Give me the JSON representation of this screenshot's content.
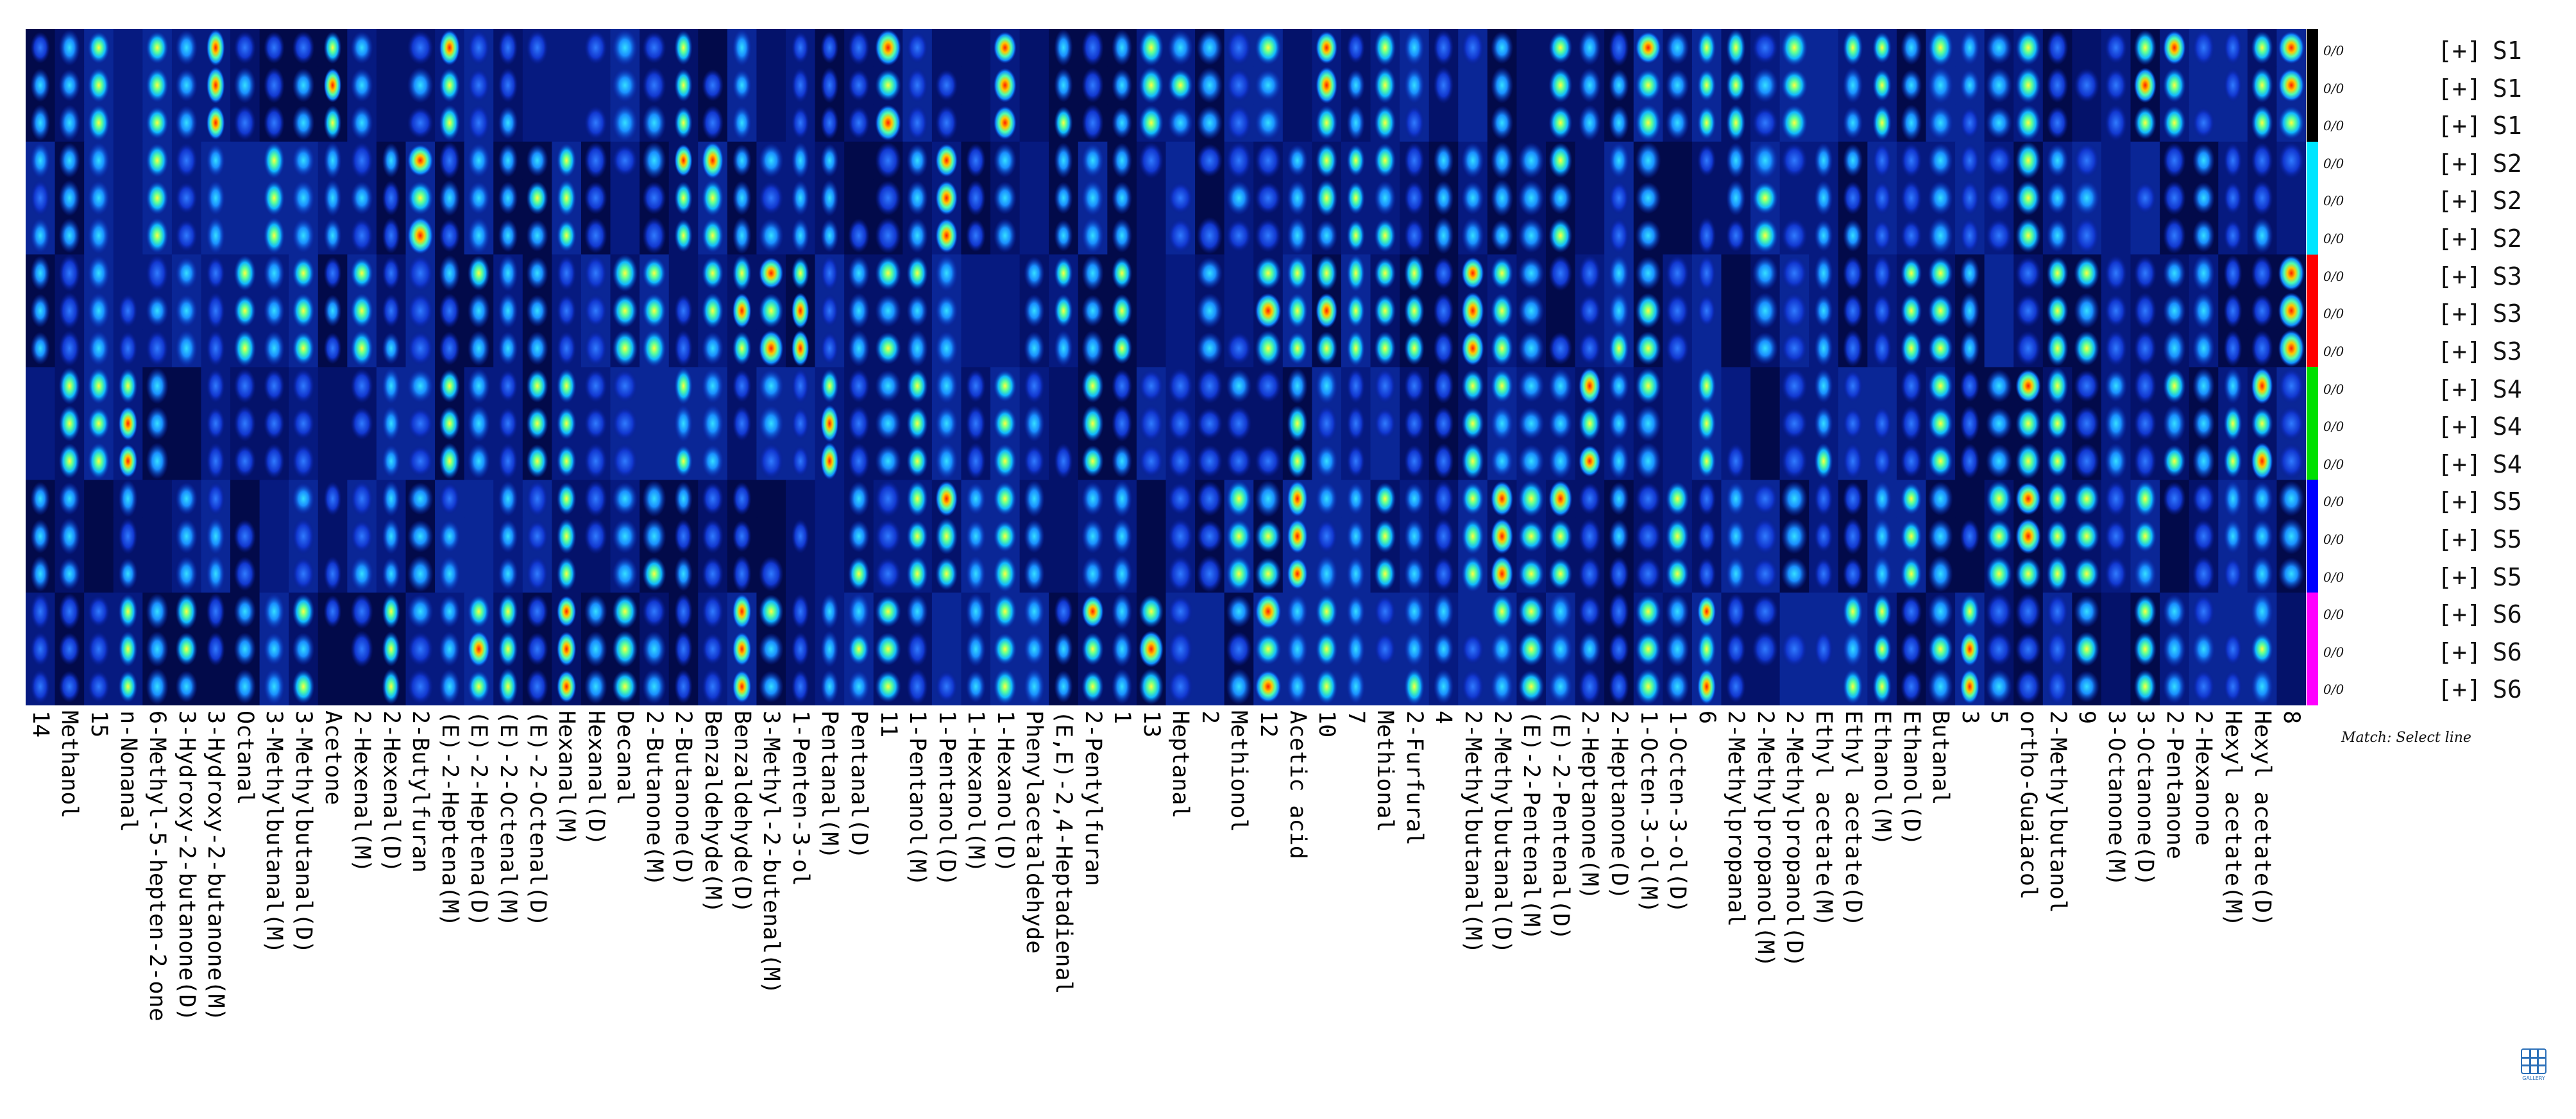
{
  "chart_data": {
    "type": "heatmap",
    "title": "",
    "columns": [
      "14",
      "Methanol",
      "15",
      "n-Nonanal",
      "6-Methyl-5-hepten-2-one",
      "3-Hydroxy-2-butanone(D)",
      "3-Hydroxy-2-butanone(M)",
      "Octanal",
      "3-Methylbutanal(M)",
      "3-Methylbutanal(D)",
      "Acetone",
      "2-Hexenal(M)",
      "2-Hexenal(D)",
      "2-Butylfuran",
      "(E)-2-Heptena(M)",
      "(E)-2-Heptena(D)",
      "(E)-2-Octenal(M)",
      "(E)-2-Octenal(D)",
      "Hexanal(M)",
      "Hexanal(D)",
      "Decanal",
      "2-Butanone(M)",
      "2-Butanone(D)",
      "Benzaldehyde(M)",
      "Benzaldehyde(D)",
      "3-Methyl-2-butenal(M)",
      "1-Penten-3-ol",
      "Pentanal(M)",
      "Pentanal(D)",
      "11",
      "1-Pentanol(M)",
      "1-Pentanol(D)",
      "1-Hexanol(M)",
      "1-Hexanol(D)",
      "Phenylacetaldehyde",
      "(E,E)-2,4-Heptadienal",
      "2-Pentylfuran",
      "1",
      "13",
      "Heptanal",
      "2",
      "Methionol",
      "12",
      "Acetic acid",
      "10",
      "7",
      "Methional",
      "2-Furfural",
      "4",
      "2-Methylbutanal(M)",
      "2-Methylbutanal(D)",
      "(E)-2-Pentenal(M)",
      "(E)-2-Pentenal(D)",
      "2-Heptanone(M)",
      "2-Heptanone(D)",
      "1-Octen-3-ol(M)",
      "1-Octen-3-ol(D)",
      "6",
      "2-Methylpropanal",
      "2-Methylpropanol(M)",
      "2-Methylpropanol(D)",
      "Ethyl acetate(M)",
      "Ethyl acetate(D)",
      "Ethanol(M)",
      "Ethanol(D)",
      "Butanal",
      "3",
      "5",
      "ortho-Guaiacol",
      "2-Methylbutanol",
      "9",
      "3-Octanone(M)",
      "3-Octanone(D)",
      "2-Pentanone",
      "2-Hexanone",
      "Hexyl acetate(M)",
      "Hexyl acetate(D)",
      "8"
    ],
    "rows": [
      {
        "group": "S1",
        "ratio": "0/0"
      },
      {
        "group": "S1",
        "ratio": "0/0"
      },
      {
        "group": "S1",
        "ratio": "0/0"
      },
      {
        "group": "S2",
        "ratio": "0/0"
      },
      {
        "group": "S2",
        "ratio": "0/0"
      },
      {
        "group": "S2",
        "ratio": "0/0"
      },
      {
        "group": "S3",
        "ratio": "0/0"
      },
      {
        "group": "S3",
        "ratio": "0/0"
      },
      {
        "group": "S3",
        "ratio": "0/0"
      },
      {
        "group": "S4",
        "ratio": "0/0"
      },
      {
        "group": "S4",
        "ratio": "0/0"
      },
      {
        "group": "S4",
        "ratio": "0/0"
      },
      {
        "group": "S5",
        "ratio": "0/0"
      },
      {
        "group": "S5",
        "ratio": "0/0"
      },
      {
        "group": "S5",
        "ratio": "0/0"
      },
      {
        "group": "S6",
        "ratio": "0/0"
      },
      {
        "group": "S6",
        "ratio": "0/0"
      },
      {
        "group": "S6",
        "ratio": "0/0"
      }
    ],
    "group_colors": {
      "S1": "#000000",
      "S2": "#00e5ff",
      "S3": "#ff0000",
      "S4": "#00e000",
      "S5": "#0000ff",
      "S6": "#ff00ff"
    },
    "row_prefix": "[+]",
    "colormap": "jet",
    "note": "Match: Select line"
  },
  "gallery": {
    "icon": "grid-icon",
    "label": "GALLERY"
  }
}
